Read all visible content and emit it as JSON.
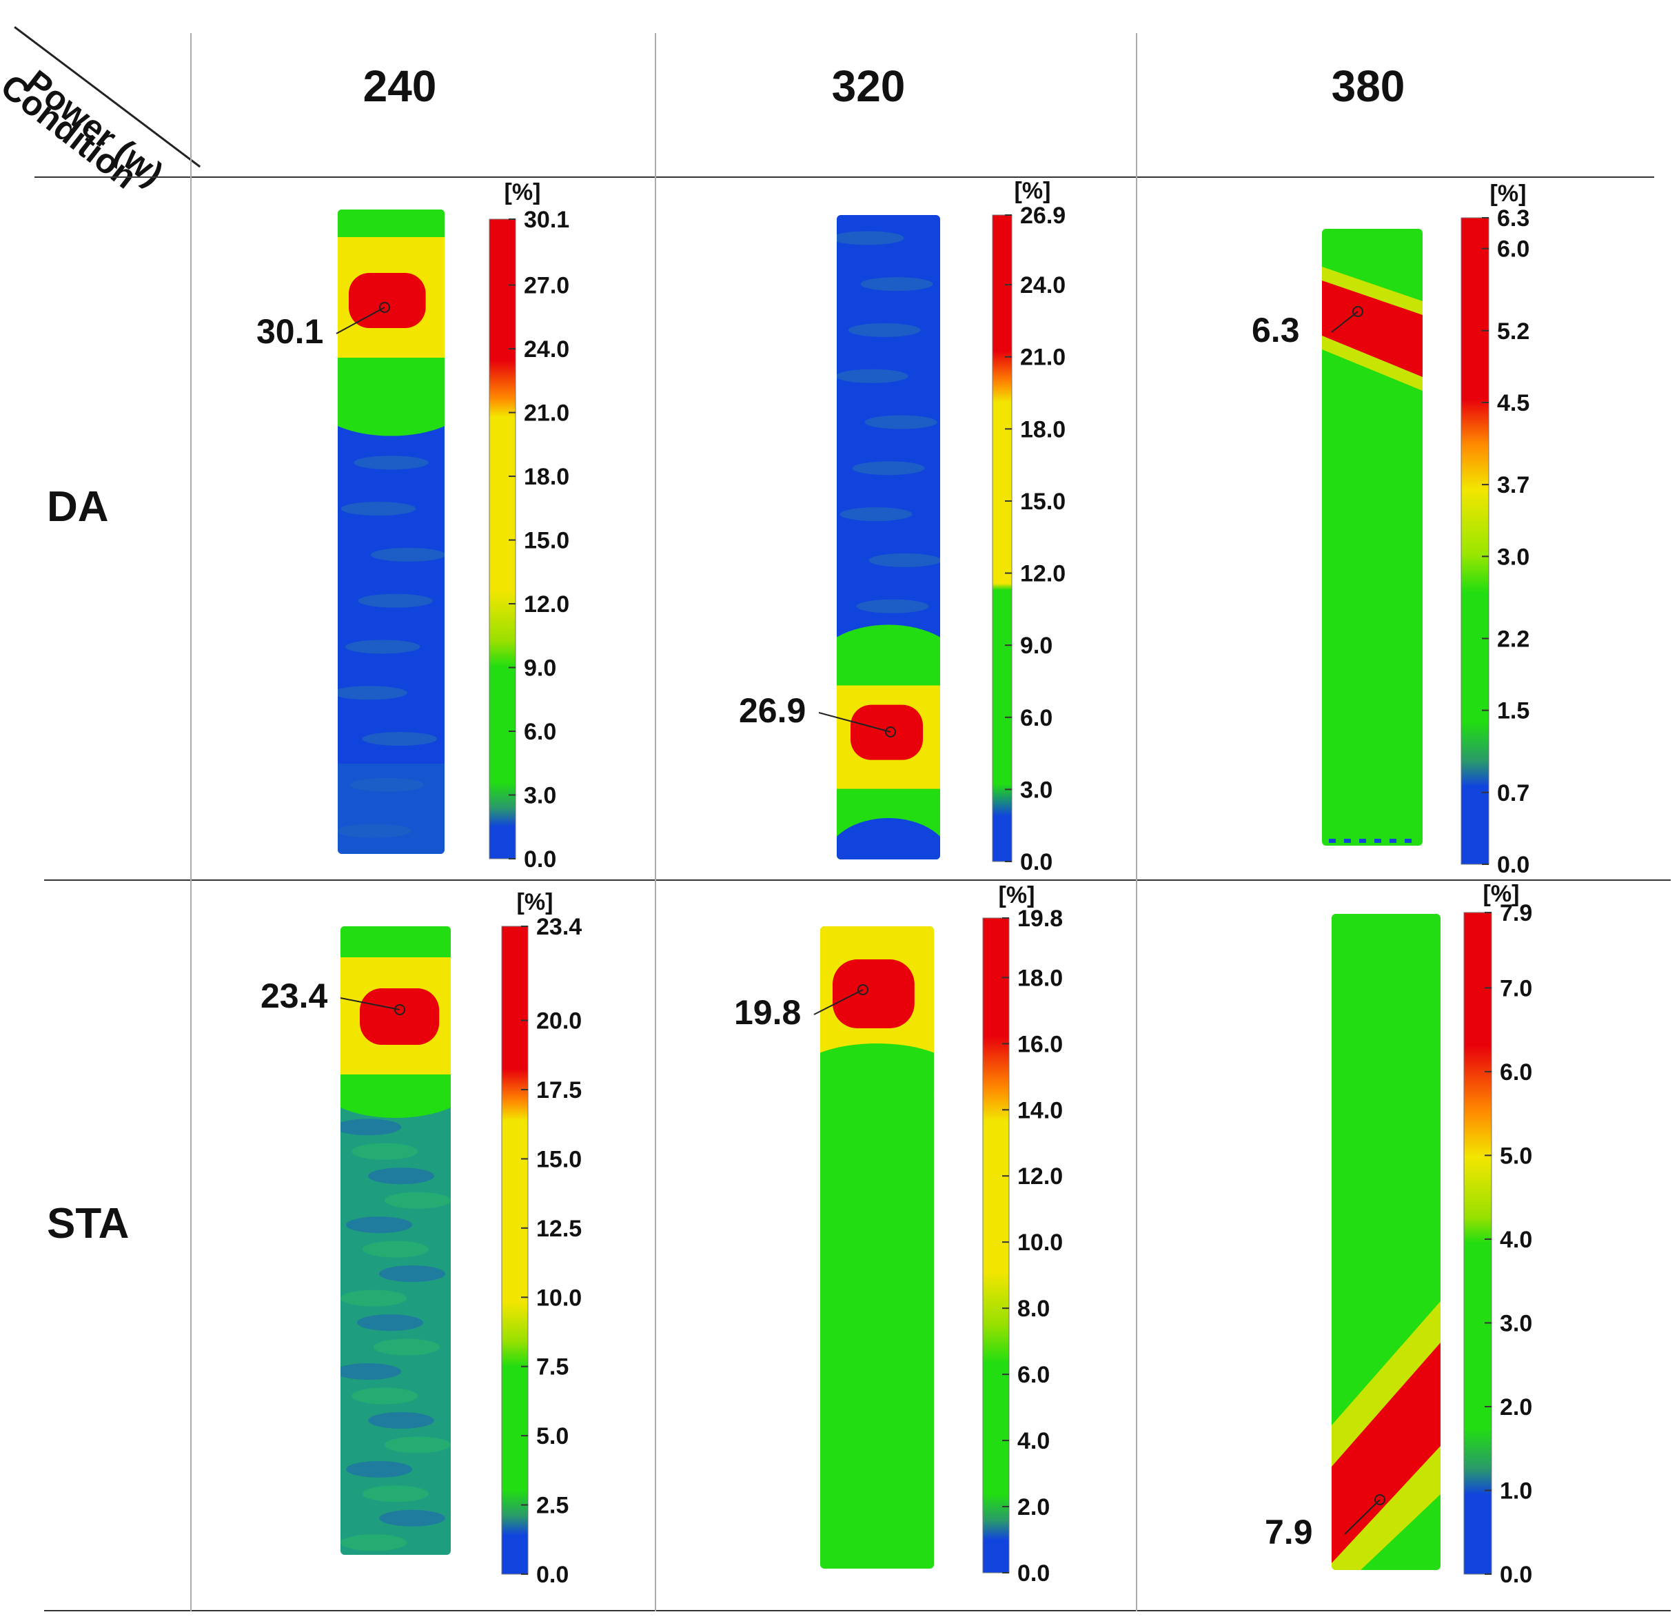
{
  "header": {
    "corner_top": "Power (w)",
    "corner_bottom": "Condition",
    "powers": [
      "240",
      "320",
      "380"
    ],
    "rows": [
      "DA",
      "STA"
    ]
  },
  "colors": {
    "red": "#e8000b",
    "orange": "#ff8a00",
    "yellow": "#f2e600",
    "green": "#22dd11",
    "blue": "#1144dd",
    "line": "#222222"
  },
  "chart_data": [
    {
      "type": "heatmap",
      "row": "DA",
      "power": "240",
      "unit": "[%]",
      "scale_max": "30.1",
      "scale_ticks": [
        "30.1",
        "27.0",
        "24.0",
        "21.0",
        "18.0",
        "15.0",
        "12.0",
        "9.0",
        "6.0",
        "3.0",
        "0.0"
      ],
      "peak_value": "30.1",
      "peak_location": "upper"
    },
    {
      "type": "heatmap",
      "row": "DA",
      "power": "320",
      "unit": "[%]",
      "scale_max": "26.9",
      "scale_ticks": [
        "26.9",
        "24.0",
        "21.0",
        "18.0",
        "15.0",
        "12.0",
        "9.0",
        "6.0",
        "3.0",
        "0.0"
      ],
      "peak_value": "26.9",
      "peak_location": "lower"
    },
    {
      "type": "heatmap",
      "row": "DA",
      "power": "380",
      "unit": "[%]",
      "scale_max": "6.3",
      "scale_ticks": [
        "6.3",
        "6.0",
        "5.2",
        "4.5",
        "3.7",
        "3.0",
        "2.2",
        "1.5",
        "0.7",
        "0.0"
      ],
      "peak_value": "6.3",
      "peak_location": "upper-diagonal"
    },
    {
      "type": "heatmap",
      "row": "STA",
      "power": "240",
      "unit": "[%]",
      "scale_max": "23.4",
      "scale_ticks": [
        "23.4",
        "20.0",
        "17.5",
        "15.0",
        "12.5",
        "10.0",
        "7.5",
        "5.0",
        "2.5",
        "0.0"
      ],
      "peak_value": "23.4",
      "peak_location": "upper"
    },
    {
      "type": "heatmap",
      "row": "STA",
      "power": "320",
      "unit": "[%]",
      "scale_max": "19.8",
      "scale_ticks": [
        "19.8",
        "18.0",
        "16.0",
        "14.0",
        "12.0",
        "10.0",
        "8.0",
        "6.0",
        "4.0",
        "2.0",
        "0.0"
      ],
      "peak_value": "19.8",
      "peak_location": "upper"
    },
    {
      "type": "heatmap",
      "row": "STA",
      "power": "380",
      "unit": "[%]",
      "scale_max": "7.9",
      "scale_ticks": [
        "7.9",
        "7.0",
        "6.0",
        "5.0",
        "4.0",
        "3.0",
        "2.0",
        "1.0",
        "0.0"
      ],
      "peak_value": "7.9",
      "peak_location": "lower-diagonal"
    }
  ]
}
